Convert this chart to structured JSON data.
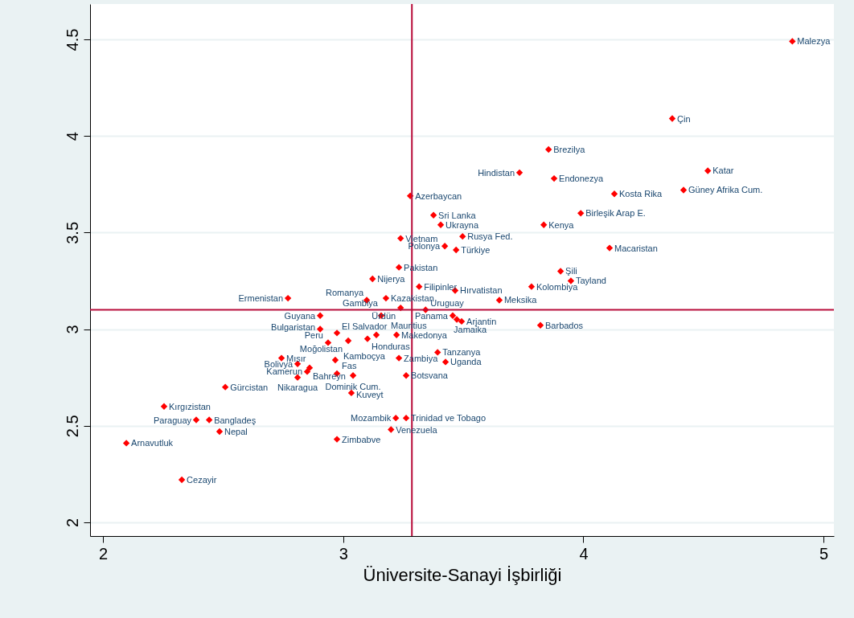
{
  "chart_data": {
    "type": "scatter",
    "xlabel": "Üniversite-Sanayi İşbirliği",
    "xlim": [
      1.946,
      5.043
    ],
    "ylim": [
      1.929,
      4.683
    ],
    "xticks": [
      2,
      3,
      4,
      5
    ],
    "yticks": [
      2,
      2.5,
      3,
      3.5,
      4,
      4.5
    ],
    "grid": "y",
    "marker": "diamond",
    "ref_lines": [
      {
        "axis": "x",
        "value": 3.286,
        "color": "#b80c3a"
      },
      {
        "axis": "y",
        "value": 3.1,
        "color": "#b80c3a"
      }
    ],
    "series": [
      {
        "color": "#ff0000",
        "x": [
          4.87,
          4.37,
          3.855,
          3.734,
          3.878,
          4.518,
          4.417,
          4.129,
          3.989,
          3.835,
          4.109,
          3.905,
          3.948,
          3.784,
          3.65,
          3.821,
          3.279,
          3.376,
          3.406,
          3.497,
          3.239,
          3.423,
          3.47,
          3.232,
          3.122,
          3.316,
          3.466,
          3.178,
          3.098,
          3.239,
          3.343,
          3.158,
          3.456,
          3.473,
          3.493,
          3.222,
          3.138,
          3.101,
          3.021,
          2.974,
          2.904,
          2.904,
          2.77,
          2.937,
          2.743,
          2.81,
          2.86,
          2.85,
          2.81,
          2.967,
          2.974,
          3.041,
          3.034,
          2.509,
          2.254,
          2.388,
          2.442,
          2.485,
          2.097,
          2.328,
          2.974,
          3.219,
          3.262,
          3.199,
          3.232,
          3.393,
          3.426,
          3.262
        ],
        "values": [
          4.49,
          4.09,
          3.93,
          3.81,
          3.78,
          3.82,
          3.72,
          3.7,
          3.6,
          3.54,
          3.42,
          3.3,
          3.25,
          3.22,
          3.15,
          3.02,
          3.69,
          3.59,
          3.54,
          3.48,
          3.47,
          3.43,
          3.41,
          3.32,
          3.26,
          3.22,
          3.2,
          3.16,
          3.15,
          3.11,
          3.1,
          3.07,
          3.07,
          3.05,
          3.04,
          2.97,
          2.97,
          2.95,
          2.94,
          2.98,
          3.07,
          3.0,
          3.16,
          2.93,
          2.85,
          2.82,
          2.8,
          2.78,
          2.75,
          2.84,
          2.77,
          2.76,
          2.67,
          2.7,
          2.6,
          2.53,
          2.53,
          2.47,
          2.41,
          2.22,
          2.43,
          2.54,
          2.54,
          2.48,
          2.85,
          2.88,
          2.83,
          2.76
        ],
        "value_labels": [
          "Malezya",
          "Çin",
          "Brezilya",
          "Hindistan",
          "Endonezya",
          "Katar",
          "Güney Afrika Cum.",
          "Kosta Rika",
          "Birleşik Arap E.",
          "Kenya",
          "Macaristan",
          "Şili",
          "Tayland",
          "Kolombiya",
          "Meksika",
          "Barbados",
          "Azerbaycan",
          "Sri Lanka",
          "Ukrayna",
          "Rusya Fed.",
          "Vietnam",
          "Polonya",
          "Türkiye",
          "Pakistan",
          "Nijerya",
          "Filipinler",
          "Hırvatistan",
          "Kazakistan",
          "Romanya",
          "Ürdün",
          "Uruguay",
          "Gambiya",
          "Panama",
          "Jamaika",
          "Arjantin",
          "Makedonya",
          "Mauritius",
          "Honduras",
          "Moğolistan",
          "El Salvador",
          "Guyana",
          "Bulgaristan",
          "Ermenistan",
          "Peru",
          "Mısır",
          "Bolivya",
          "Bahreyn",
          "Kamerun",
          "Nikaragua",
          "Kamboçya",
          "Fas",
          "Dominik Cum.",
          "Kuveyt",
          "Gürcistan",
          "Kırgızistan",
          "Paraguay",
          "Bangladeş",
          "Nepal",
          "Arnavutluk",
          "Cezayir",
          "Zimbabve",
          "Mozambik",
          "Trinidad ve Tobago",
          "Venezuela",
          "Zambiya",
          "Tanzanya",
          "Uganda",
          "Botsvana"
        ]
      }
    ]
  }
}
